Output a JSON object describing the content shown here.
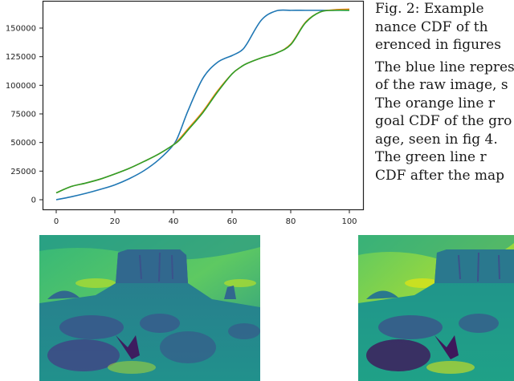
{
  "figure": {
    "caption_lines": [
      "Fig. 2:  Example",
      "nance CDF of th",
      "erenced in figures"
    ],
    "paragraph_lines": [
      "The blue line repres",
      "of the raw image, s",
      "The  orange  line  r",
      "goal CDF of the gro",
      "age, seen in fig 4.",
      "The  green  line  r",
      "CDF after the map"
    ]
  },
  "chart_data": {
    "type": "line",
    "title": "",
    "xlabel": "",
    "ylabel": "",
    "xlim": [
      -5,
      105
    ],
    "ylim": [
      -8000,
      172000
    ],
    "grid": false,
    "legend": null,
    "x_ticks": [
      0,
      20,
      40,
      60,
      80,
      100
    ],
    "x_tick_labels": [
      "0",
      "20",
      "40",
      "60",
      "80",
      "100"
    ],
    "y_ticks": [
      0,
      25000,
      50000,
      75000,
      100000,
      125000,
      150000
    ],
    "y_tick_labels": [
      "0",
      "25000",
      "50000",
      "75000",
      "100000",
      "125000",
      "150000"
    ],
    "x": [
      0,
      5,
      10,
      15,
      20,
      25,
      30,
      35,
      40,
      42,
      45,
      50,
      55,
      60,
      63,
      65,
      70,
      75,
      80,
      85,
      90,
      95,
      100
    ],
    "series": [
      {
        "name": "blue (raw image CDF)",
        "color": "#1f77b4",
        "values": [
          0,
          2500,
          5500,
          9000,
          13000,
          18500,
          25500,
          35000,
          48000,
          58000,
          78000,
          106000,
          120000,
          126000,
          130000,
          136000,
          157000,
          165000,
          165500,
          165500,
          165500,
          165500,
          165500
        ]
      },
      {
        "name": "orange (goal CDF)",
        "color": "#ff7f0e",
        "values": [
          6000,
          11500,
          14500,
          18000,
          22500,
          27500,
          33500,
          40000,
          48000,
          53000,
          62000,
          77000,
          95000,
          110000,
          116000,
          119000,
          124000,
          128000,
          136000,
          155000,
          164000,
          166000,
          166500
        ]
      },
      {
        "name": "green (mapped CDF)",
        "color": "#2ca02c",
        "values": [
          6000,
          11500,
          14500,
          18000,
          22500,
          27500,
          33500,
          40000,
          48000,
          52000,
          61000,
          76000,
          94000,
          110000,
          116000,
          119000,
          124000,
          128000,
          135500,
          154500,
          164000,
          165500,
          165500
        ]
      }
    ]
  },
  "images": [
    {
      "name": "raw-image",
      "description": "viridis-colormapped desert butte landscape"
    },
    {
      "name": "mapped-image",
      "description": "viridis-colormapped desert butte landscape after mapping"
    }
  ],
  "colors": {
    "viridis_dark": "#440154",
    "viridis_blue": "#31688e",
    "viridis_teal": "#21918c",
    "viridis_green": "#35b779",
    "viridis_yellow": "#fde725"
  }
}
